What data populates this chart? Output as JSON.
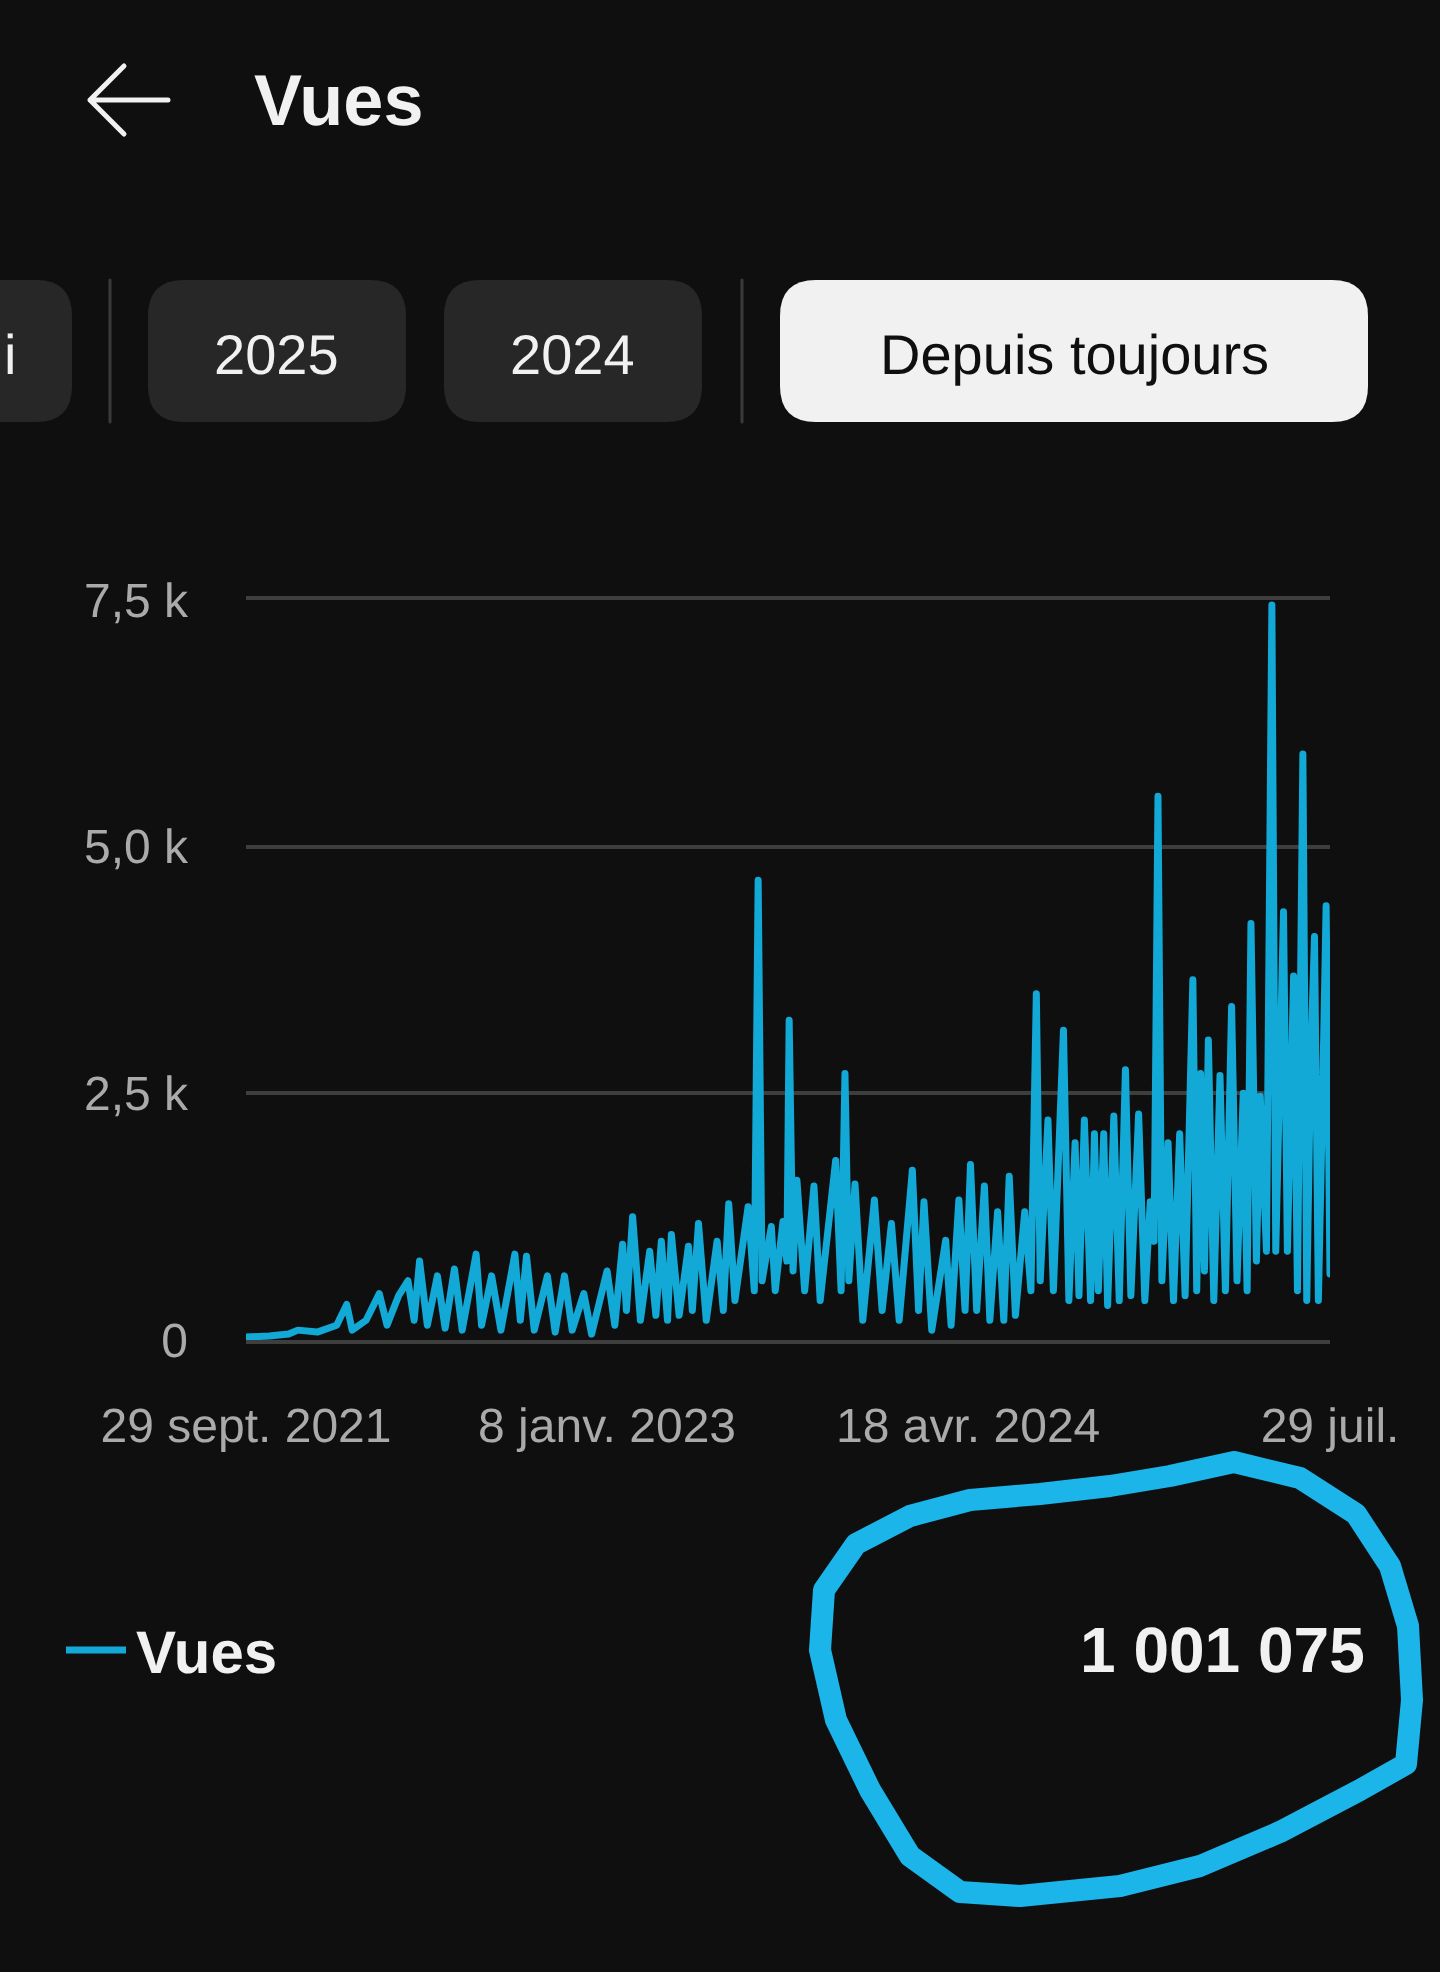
{
  "chart_data": {
    "type": "line",
    "title": "Vues",
    "annotations": [
      "i",
      "2025",
      "2024",
      "Depuis toujours",
      "1 001 075"
    ],
    "x": [
      "2021-09-29",
      "2021-10-29",
      "2021-11-23",
      "2021-12-05",
      "2021-12-30",
      "2022-01-24",
      "2022-02-06",
      "2022-02-13",
      "2022-03-03",
      "2022-03-20",
      "2022-03-30",
      "2022-04-14",
      "2022-04-26",
      "2022-05-04",
      "2022-05-11",
      "2022-05-21",
      "2022-06-03",
      "2022-06-13",
      "2022-06-25",
      "2022-07-05",
      "2022-07-23",
      "2022-07-30",
      "2022-08-12",
      "2022-08-24",
      "2022-09-11",
      "2022-09-18",
      "2022-09-26",
      "2022-10-06",
      "2022-10-23",
      "2022-11-02",
      "2022-11-14",
      "2022-11-24",
      "2022-12-09",
      "2022-12-19",
      "2023-01-08",
      "2023-01-18",
      "2023-01-28",
      "2023-02-02",
      "2023-02-10",
      "2023-02-20",
      "2023-03-04",
      "2023-03-12",
      "2023-03-19",
      "2023-03-27",
      "2023-04-01",
      "2023-04-11",
      "2023-04-23",
      "2023-04-28",
      "2023-05-06",
      "2023-05-16",
      "2023-05-30",
      "2023-06-07",
      "2023-06-14",
      "2023-06-22",
      "2023-07-09",
      "2023-07-17",
      "2023-07-22",
      "2023-07-27",
      "2023-08-08",
      "2023-08-13",
      "2023-08-23",
      "2023-08-28",
      "2023-08-31",
      "2023-09-05",
      "2023-09-10",
      "2023-09-20",
      "2023-10-02",
      "2023-10-10",
      "2023-10-30",
      "2023-11-06",
      "2023-11-11",
      "2023-11-16",
      "2023-11-24",
      "2023-12-04",
      "2023-12-19",
      "2023-12-29",
      "2024-01-10",
      "2024-01-20",
      "2024-02-06",
      "2024-02-14",
      "2024-02-21",
      "2024-03-02",
      "2024-03-20",
      "2024-03-27",
      "2024-04-06",
      "2024-04-14",
      "2024-04-21",
      "2024-04-29",
      "2024-05-09",
      "2024-05-16",
      "2024-05-26",
      "2024-06-03",
      "2024-06-10",
      "2024-06-18",
      "2024-06-30",
      "2024-07-08",
      "2024-07-15",
      "2024-07-20",
      "2024-07-30",
      "2024-08-06",
      "2024-08-19",
      "2024-08-26",
      "2024-09-03",
      "2024-09-08",
      "2024-09-15",
      "2024-09-23",
      "2024-09-28",
      "2024-10-03",
      "2024-10-10",
      "2024-10-15",
      "2024-10-23",
      "2024-10-30",
      "2024-11-07",
      "2024-11-14",
      "2024-11-24",
      "2024-12-02",
      "2024-12-09",
      "2024-12-14",
      "2024-12-19",
      "2024-12-24",
      "2025-01-01",
      "2025-01-08",
      "2025-01-16",
      "2025-01-23",
      "2025-02-02",
      "2025-02-07",
      "2025-02-12",
      "2025-02-17",
      "2025-02-22",
      "2025-03-01",
      "2025-03-09",
      "2025-03-16",
      "2025-03-24",
      "2025-03-31",
      "2025-04-08",
      "2025-04-13",
      "2025-04-18",
      "2025-04-25",
      "2025-04-30",
      "2025-05-08",
      "2025-05-15",
      "2025-05-20",
      "2025-05-30",
      "2025-06-04",
      "2025-06-12",
      "2025-06-17",
      "2025-06-24",
      "2025-06-29",
      "2025-07-04",
      "2025-07-09",
      "2025-07-14",
      "2025-07-19",
      "2025-07-24",
      "2025-07-29"
    ],
    "series": [
      {
        "name": "Vues",
        "color": "#12a9d6",
        "values": [
          30,
          40,
          60,
          100,
          80,
          150,
          360,
          100,
          200,
          470,
          150,
          450,
          600,
          200,
          800,
          150,
          650,
          120,
          720,
          100,
          870,
          150,
          650,
          100,
          870,
          200,
          850,
          100,
          650,
          80,
          650,
          100,
          470,
          60,
          700,
          150,
          970,
          300,
          1250,
          200,
          900,
          250,
          1000,
          200,
          1070,
          250,
          950,
          300,
          1180,
          200,
          1000,
          300,
          1380,
          400,
          1350,
          500,
          4660,
          600,
          1150,
          500,
          1200,
          800,
          3240,
          700,
          1620,
          500,
          1560,
          400,
          1820,
          500,
          2700,
          600,
          1580,
          200,
          1420,
          300,
          1180,
          200,
          1720,
          300,
          1400,
          100,
          1010,
          150,
          1420,
          300,
          1780,
          300,
          1560,
          200,
          1300,
          200,
          1660,
          250,
          1300,
          500,
          3510,
          600,
          2230,
          500,
          3140,
          400,
          2000,
          450,
          2230,
          400,
          2090,
          500,
          2090,
          350,
          2270,
          400,
          2740,
          450,
          2290,
          400,
          1400,
          1000,
          5510,
          600,
          2000,
          400,
          2090,
          450,
          3650,
          500,
          2700,
          700,
          3040,
          400,
          2680,
          500,
          3380,
          600,
          2500,
          500,
          4220,
          800,
          2470,
          900,
          7450,
          900,
          4340,
          900,
          3690,
          500,
          5940,
          400,
          2800,
          4090,
          400,
          2290,
          4400,
          670
        ]
      }
    ],
    "xlim": [
      "2021-09-29",
      "2025-07-29"
    ],
    "xticks": [
      {
        "value": "2021-09-29",
        "label": "29 sept. 2021"
      },
      {
        "value": "2023-01-08",
        "label": "8 janv. 2023"
      },
      {
        "value": "2024-04-18",
        "label": "18 avr. 2024"
      },
      {
        "value": "2025-07-29",
        "label": "29 juil."
      }
    ],
    "ylim": [
      0,
      7500
    ],
    "yticks": [
      0,
      {
        "value": 2500,
        "label": "2,5 k"
      },
      {
        "value": 5000,
        "label": "5,0 k"
      },
      {
        "value": 7500,
        "label": "7,5 k"
      }
    ],
    "grid": "y",
    "legend": "bottom left"
  }
}
